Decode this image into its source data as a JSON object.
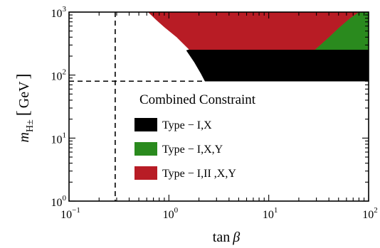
{
  "chart_data": {
    "type": "area",
    "title": "",
    "xlabel": "tan β",
    "xlabel_parts": {
      "main": "tan",
      "symbol": "β"
    },
    "ylabel_parts": {
      "m": "m",
      "sub": "H±",
      "open": "[",
      "unit": "GeV",
      "close": "]"
    },
    "x_scale": "log",
    "y_scale": "log",
    "xlim": [
      0.1,
      100
    ],
    "ylim": [
      1,
      1000
    ],
    "x_ticks": [
      {
        "value": 0.1,
        "base": "10",
        "exp": "−1"
      },
      {
        "value": 1,
        "base": "10",
        "exp": "0"
      },
      {
        "value": 10,
        "base": "10",
        "exp": "1"
      },
      {
        "value": 100,
        "base": "10",
        "exp": "2"
      }
    ],
    "y_ticks": [
      {
        "value": 1,
        "base": "10",
        "exp": "0"
      },
      {
        "value": 10,
        "base": "10",
        "exp": "1"
      },
      {
        "value": 100,
        "base": "10",
        "exp": "2"
      },
      {
        "value": 1000,
        "base": "10",
        "exp": "3"
      }
    ],
    "reference_lines": [
      {
        "orientation": "vertical",
        "value": 0.29,
        "style": "dashed"
      },
      {
        "orientation": "horizontal",
        "value": 80,
        "style": "dashed"
      }
    ],
    "legend": {
      "title": "Combined Constraint",
      "position": "center-right",
      "entries": [
        {
          "label": "Type − I,X",
          "color": "#000000"
        },
        {
          "label": "Type − I,X,Y",
          "color": "#2a8a1e"
        },
        {
          "label": "Type − I,II ,X,Y",
          "color": "#b81c25"
        }
      ]
    },
    "series": [
      {
        "color": "#000000",
        "polygon": [
          [
            1.5,
            246
          ],
          [
            1.8,
            160
          ],
          [
            2.1,
            105
          ],
          [
            2.3,
            80
          ],
          [
            100,
            80
          ],
          [
            100,
            254
          ],
          [
            29,
            254
          ],
          [
            1.6,
            254
          ]
        ]
      },
      {
        "color": "#2a8a1e",
        "polygon": [
          [
            29,
            254
          ],
          [
            100,
            254
          ],
          [
            100,
            1000
          ],
          [
            80,
            1000
          ],
          [
            65,
            800
          ],
          [
            50,
            560
          ],
          [
            40,
            400
          ]
        ]
      },
      {
        "color": "#b81c25",
        "polygon": [
          [
            0.62,
            1000
          ],
          [
            80,
            1000
          ],
          [
            65,
            800
          ],
          [
            50,
            560
          ],
          [
            40,
            400
          ],
          [
            29,
            254
          ],
          [
            1.6,
            254
          ],
          [
            1.2,
            400
          ],
          [
            0.9,
            580
          ],
          [
            0.75,
            750
          ]
        ]
      }
    ]
  }
}
